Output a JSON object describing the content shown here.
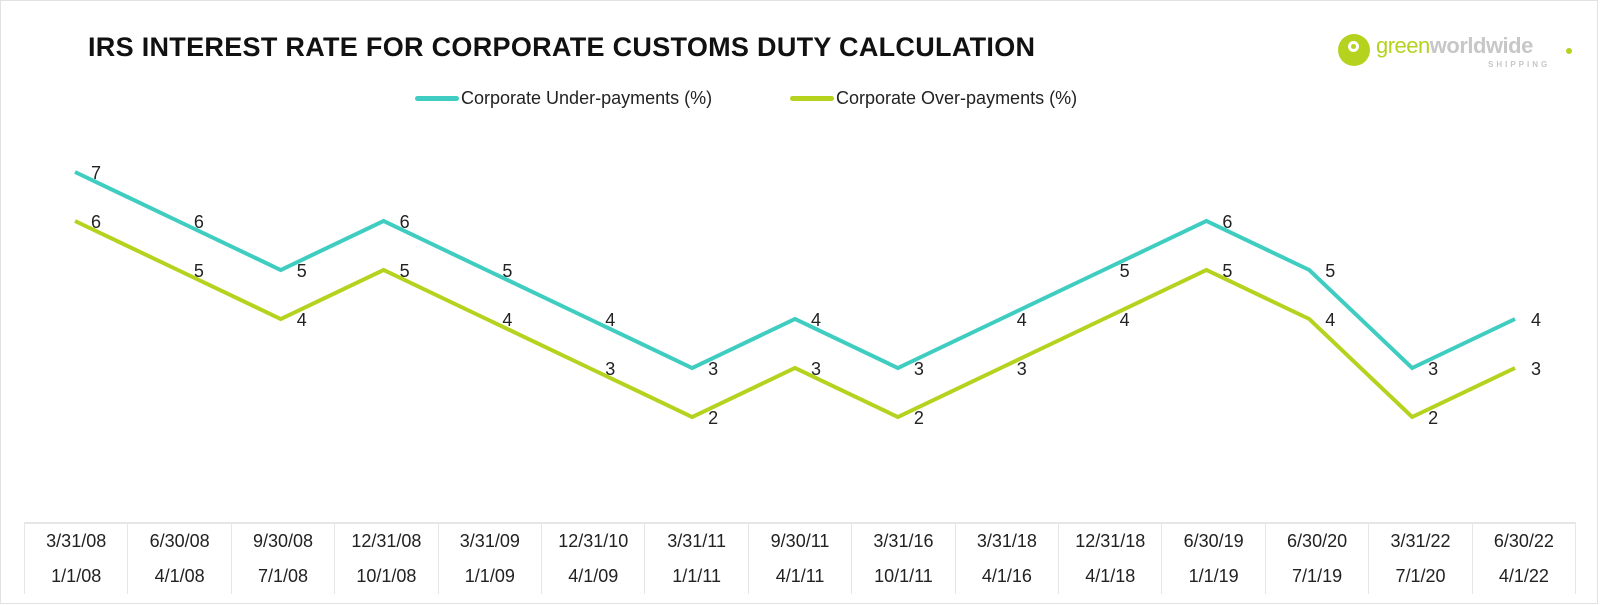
{
  "chart_data": {
    "type": "line",
    "title": "IRS INTEREST RATE FOR CORPORATE CUSTOMS DUTY CALCULATION",
    "xlabel": "",
    "ylabel": "",
    "ylim": [
      2,
      7
    ],
    "grid": false,
    "legend_position": "top-center",
    "categories": [
      {
        "end": "3/31/08",
        "start": "1/1/08"
      },
      {
        "end": "6/30/08",
        "start": "4/1/08"
      },
      {
        "end": "9/30/08",
        "start": "7/1/08"
      },
      {
        "end": "12/31/08",
        "start": "10/1/08"
      },
      {
        "end": "3/31/09",
        "start": "1/1/09"
      },
      {
        "end": "12/31/10",
        "start": "4/1/09"
      },
      {
        "end": "3/31/11",
        "start": "1/1/11"
      },
      {
        "end": "9/30/11",
        "start": "4/1/11"
      },
      {
        "end": "3/31/16",
        "start": "10/1/11"
      },
      {
        "end": "3/31/18",
        "start": "4/1/16"
      },
      {
        "end": "12/31/18",
        "start": "4/1/18"
      },
      {
        "end": "6/30/19",
        "start": "1/1/19"
      },
      {
        "end": "6/30/20",
        "start": "7/1/19"
      },
      {
        "end": "3/31/22",
        "start": "7/1/20"
      },
      {
        "end": "6/30/22",
        "start": "4/1/22"
      }
    ],
    "series": [
      {
        "name": "Corporate Under-payments (%)",
        "color": "#3ecdc0",
        "values": [
          7,
          6,
          5,
          6,
          5,
          4,
          3,
          4,
          3,
          4,
          5,
          6,
          5,
          3,
          4
        ]
      },
      {
        "name": "Corporate Over-payments (%)",
        "color": "#b5d31e",
        "values": [
          6,
          5,
          4,
          5,
          4,
          3,
          2,
          3,
          2,
          3,
          4,
          5,
          4,
          2,
          3
        ]
      }
    ]
  },
  "logo": {
    "part1": "green",
    "part2": "worldwide",
    "sub": "SHIPPING"
  }
}
